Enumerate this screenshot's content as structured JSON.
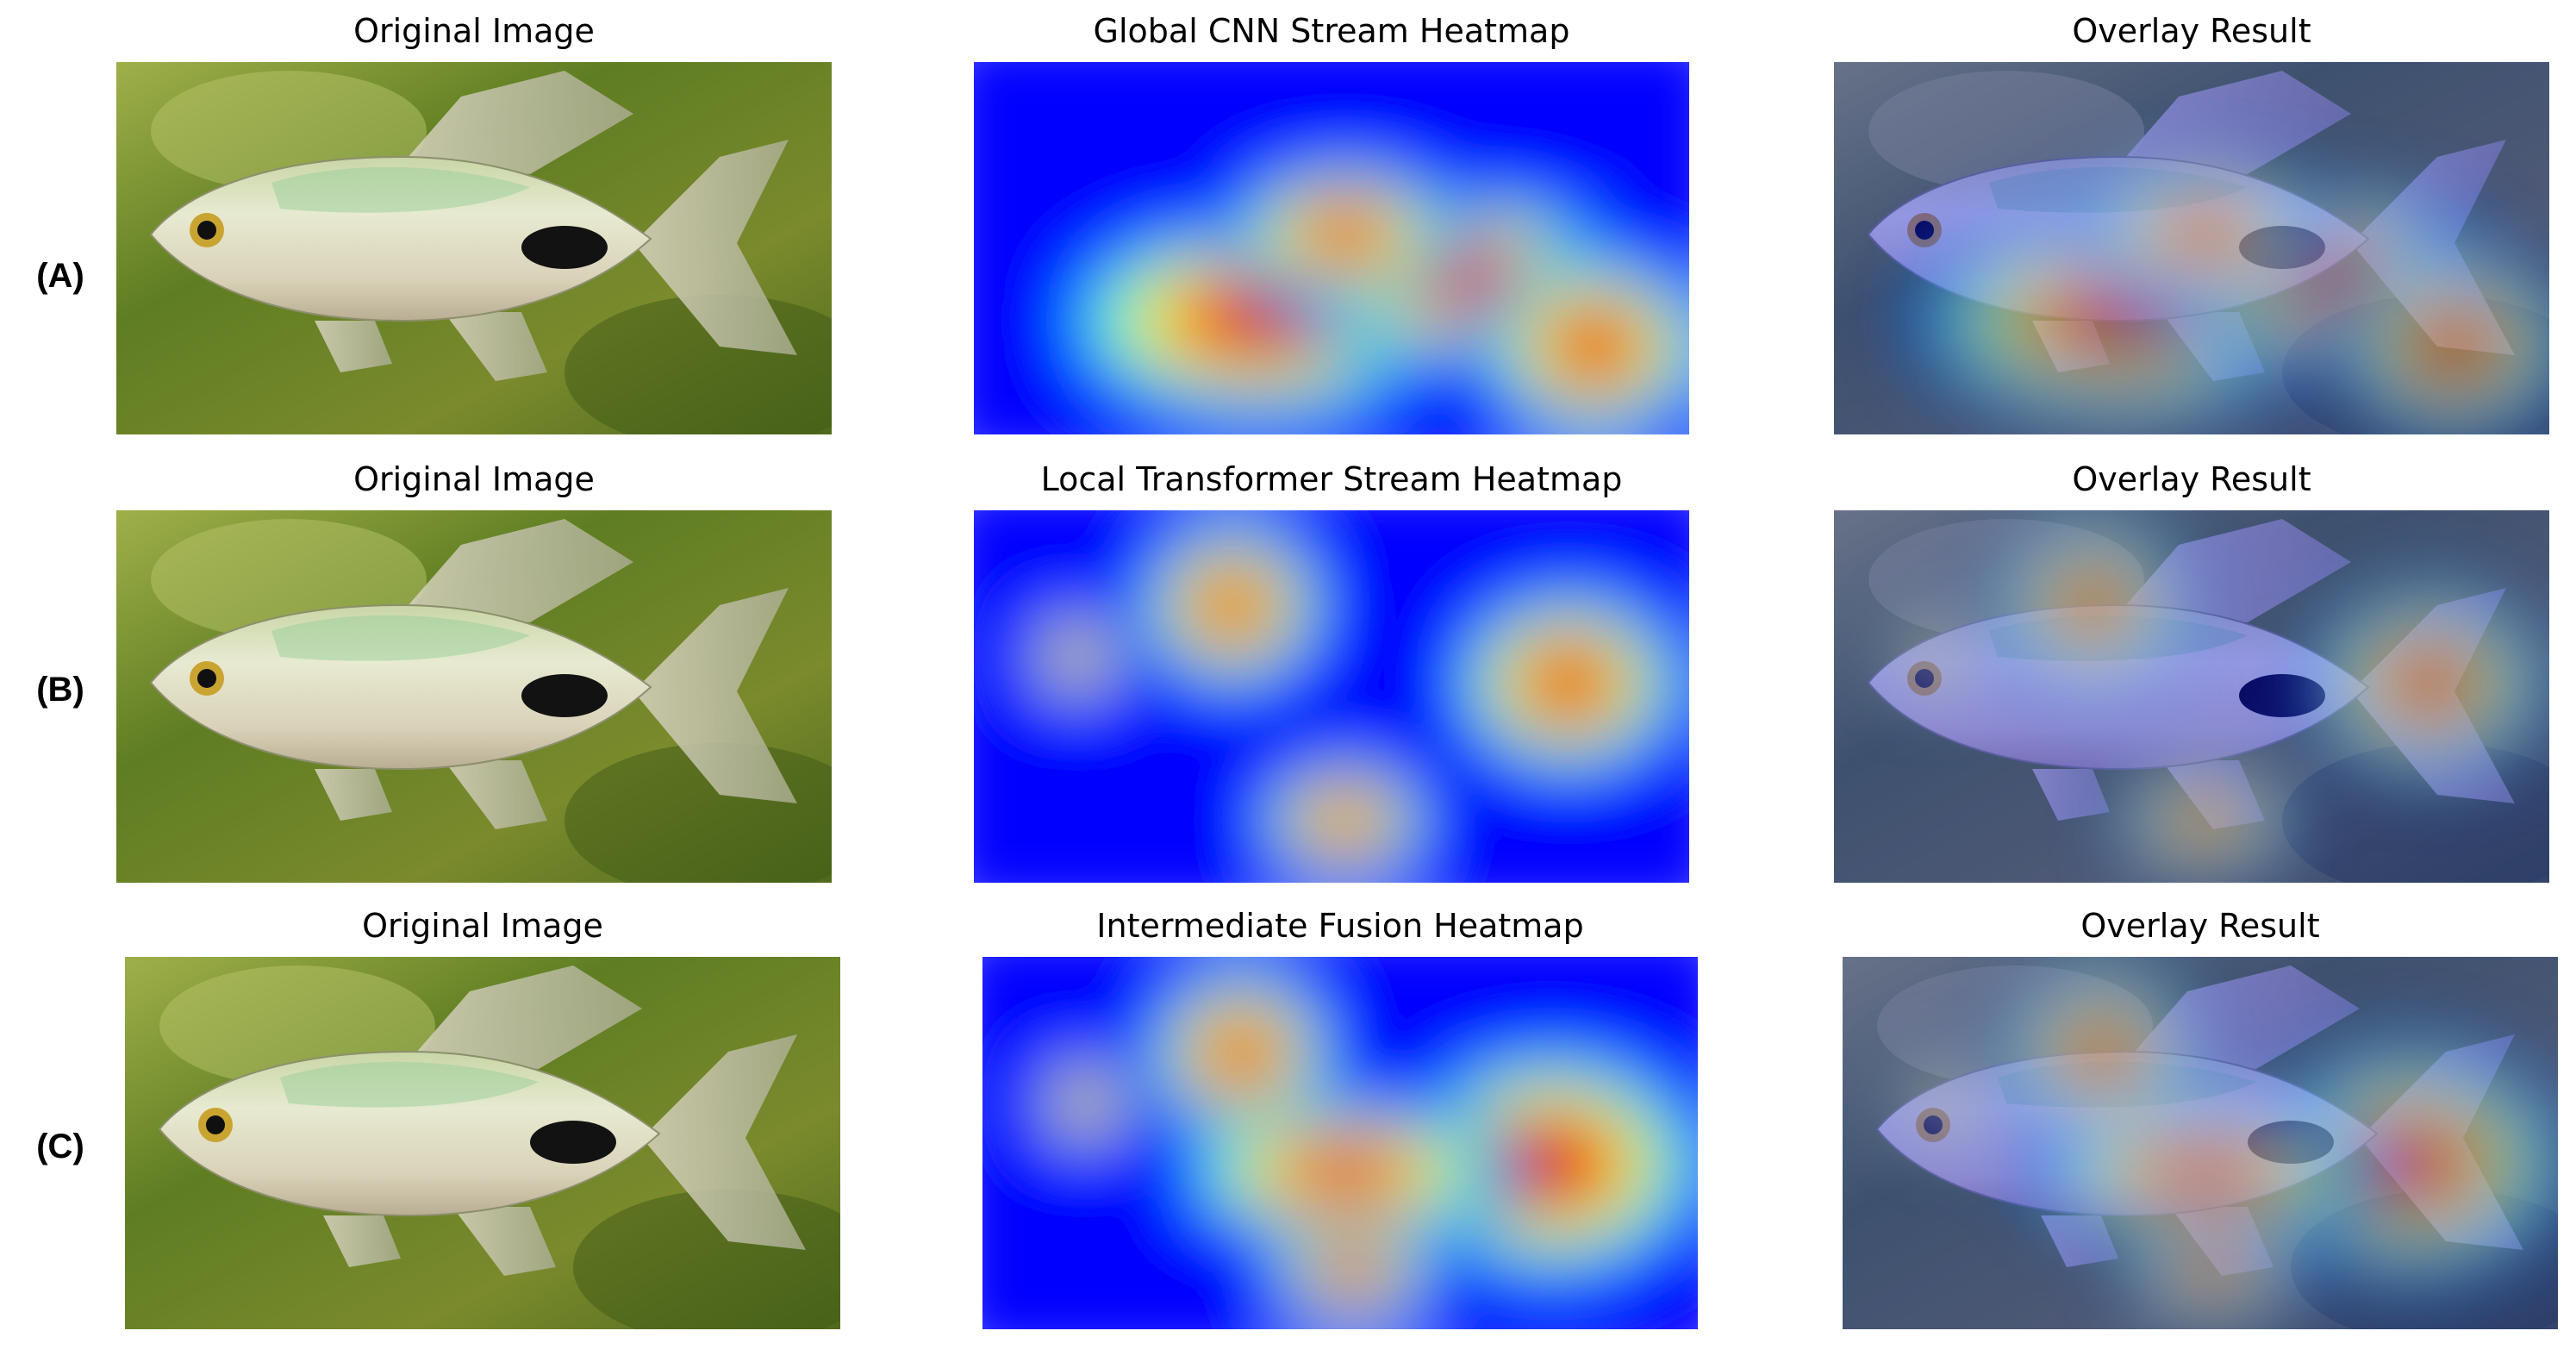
{
  "rows": [
    {
      "label": "(A)",
      "panels": [
        {
          "title": "Original Image",
          "kind": "original"
        },
        {
          "title": "Global CNN Stream Heatmap",
          "kind": "heatmap"
        },
        {
          "title": "Overlay Result",
          "kind": "overlay"
        }
      ]
    },
    {
      "label": "(B)",
      "panels": [
        {
          "title": "Original Image",
          "kind": "original"
        },
        {
          "title": "Local Transformer Stream Heatmap",
          "kind": "heatmap"
        },
        {
          "title": "Overlay Result",
          "kind": "overlay"
        }
      ]
    },
    {
      "label": "(C)",
      "panels": [
        {
          "title": "Original Image",
          "kind": "original"
        },
        {
          "title": "Intermediate Fusion Heatmap",
          "kind": "heatmap"
        },
        {
          "title": "Overlay Result",
          "kind": "overlay"
        }
      ]
    }
  ],
  "colormap": [
    "#00008f",
    "#0000ff",
    "#00ffff",
    "#ffff00",
    "#ff0000",
    "#800000"
  ]
}
